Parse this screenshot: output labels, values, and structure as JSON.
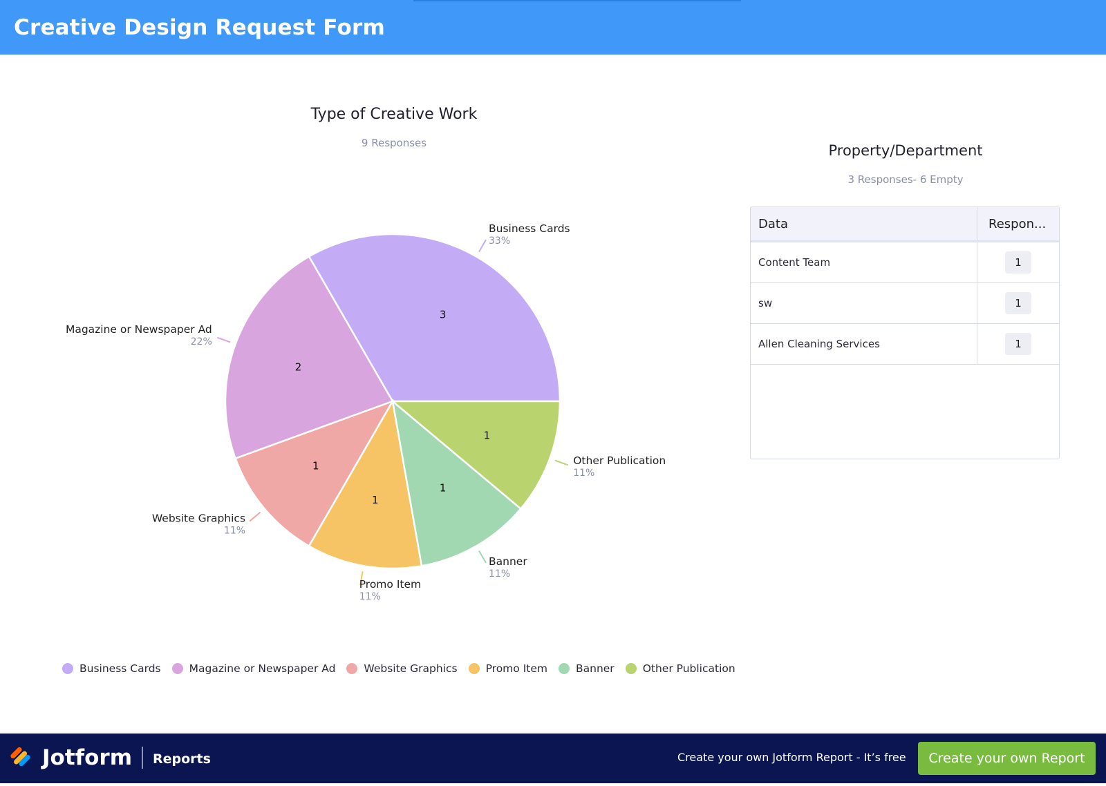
{
  "header": {
    "title": "Creative Design Request Form"
  },
  "chart_data": {
    "type": "pie",
    "title": "Type of Creative Work",
    "subtitle": "9 Responses",
    "categories": [
      "Business Cards",
      "Magazine or Newspaper Ad",
      "Website Graphics",
      "Promo Item",
      "Banner",
      "Other Publication"
    ],
    "values": [
      3,
      2,
      1,
      1,
      1,
      1
    ],
    "percents": [
      "33%",
      "22%",
      "11%",
      "11%",
      "11%",
      "11%"
    ],
    "colors": [
      "#c3abf6",
      "#d9a5de",
      "#f0a8a6",
      "#f6c465",
      "#a1d8b1",
      "#b9d46e"
    ],
    "legend_position": "bottom"
  },
  "table": {
    "title": "Property/Department",
    "subtitle": "3 Responses- 6 Empty",
    "columns": [
      "Data",
      "Respon..."
    ],
    "rows": [
      {
        "data": "Content Team",
        "count": "1"
      },
      {
        "data": "sw",
        "count": "1"
      },
      {
        "data": "Allen Cleaning Services",
        "count": "1"
      }
    ]
  },
  "footer": {
    "brand": "Jotform",
    "product": "Reports",
    "promo": "Create your own Jotform Report - It’s free",
    "cta": "Create your own Report"
  }
}
